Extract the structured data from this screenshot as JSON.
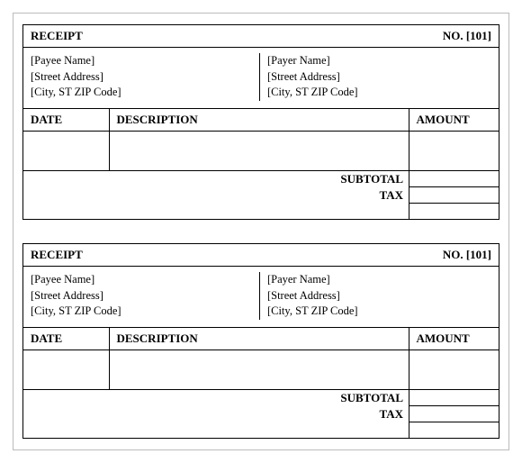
{
  "receipts": [
    {
      "header_label": "RECEIPT",
      "number_label": "NO.",
      "number_value": "[101]",
      "payee": {
        "name": "[Payee Name]",
        "street": "[Street Address]",
        "csz": "[City, ST  ZIP Code]"
      },
      "payer": {
        "name": "[Payer Name]",
        "street": "[Street Address]",
        "csz": "[City, ST  ZIP Code]"
      },
      "col_date": "DATE",
      "col_desc": "DESCRIPTION",
      "col_amount": "AMOUNT",
      "subtotal_label": "SUBTOTAL",
      "tax_label": "TAX"
    },
    {
      "header_label": "RECEIPT",
      "number_label": "NO.",
      "number_value": "[101]",
      "payee": {
        "name": "[Payee Name]",
        "street": "[Street Address]",
        "csz": "[City, ST  ZIP Code]"
      },
      "payer": {
        "name": "[Payer Name]",
        "street": "[Street Address]",
        "csz": "[City, ST  ZIP Code]"
      },
      "col_date": "DATE",
      "col_desc": "DESCRIPTION",
      "col_amount": "AMOUNT",
      "subtotal_label": "SUBTOTAL",
      "tax_label": "TAX"
    }
  ]
}
